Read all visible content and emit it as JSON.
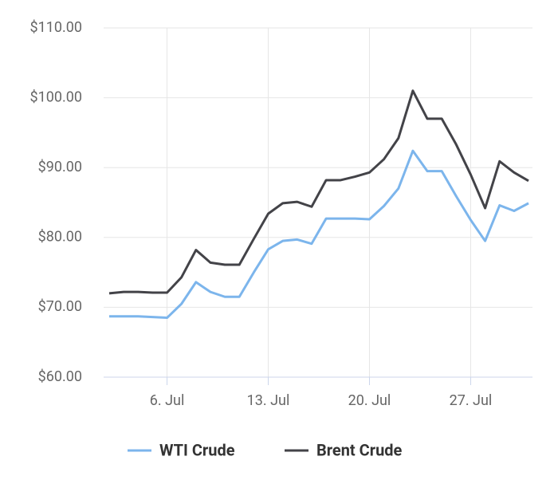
{
  "chart_data": {
    "type": "line",
    "categories": [
      null,
      null,
      null,
      null,
      "6. Jul",
      null,
      null,
      null,
      null,
      null,
      null,
      "13. Jul",
      null,
      null,
      null,
      null,
      null,
      null,
      "20. Jul",
      null,
      null,
      null,
      null,
      null,
      null,
      "27. Jul",
      null,
      null,
      null,
      null
    ],
    "series": [
      {
        "name": "WTI Crude",
        "color": "#7cb5ec",
        "values": [
          68.7,
          68.7,
          68.7,
          68.6,
          68.5,
          70.5,
          73.6,
          72.2,
          71.5,
          71.5,
          75.0,
          78.3,
          79.5,
          79.7,
          79.1,
          82.7,
          82.7,
          82.7,
          82.6,
          84.5,
          87.0,
          92.4,
          89.5,
          89.5,
          85.9,
          82.5,
          79.5,
          84.6,
          83.8,
          84.9
        ]
      },
      {
        "name": "Brent Crude",
        "color": "#434348",
        "values": [
          72.0,
          72.2,
          72.2,
          72.1,
          72.1,
          74.3,
          78.2,
          76.4,
          76.1,
          76.1,
          79.8,
          83.4,
          84.9,
          85.1,
          84.4,
          88.2,
          88.2,
          88.7,
          89.3,
          91.2,
          94.2,
          101.0,
          97.0,
          97.0,
          93.3,
          89.0,
          84.2,
          90.9,
          89.3,
          88.1
        ]
      }
    ],
    "ylim": [
      60,
      110
    ],
    "yticks": [
      {
        "value": 60,
        "label": "$60.00"
      },
      {
        "value": 70,
        "label": "$70.00"
      },
      {
        "value": 80,
        "label": "$80.00"
      },
      {
        "value": 90,
        "label": "$90.00"
      },
      {
        "value": 100,
        "label": "$100.00"
      },
      {
        "value": 110,
        "label": "$110.00"
      }
    ],
    "grid": true
  }
}
